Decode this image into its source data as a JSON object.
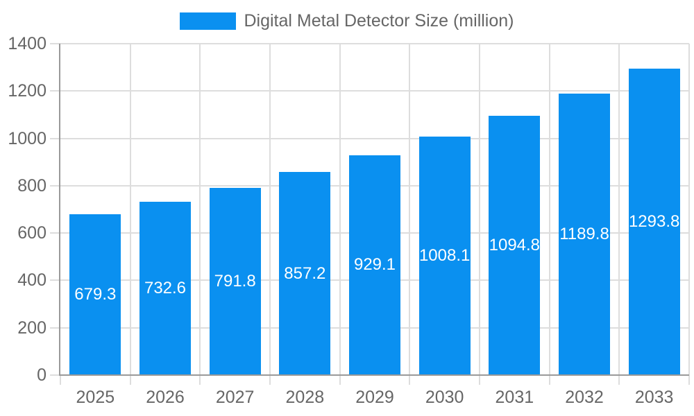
{
  "chart_data": {
    "type": "bar",
    "title": "Digital Metal Detector Size (million)",
    "categories": [
      "2025",
      "2026",
      "2027",
      "2028",
      "2029",
      "2030",
      "2031",
      "2032",
      "2033"
    ],
    "values": [
      679.3,
      732.6,
      791.8,
      857.2,
      929.1,
      1008.1,
      1094.8,
      1189.8,
      1293.8
    ],
    "value_labels": [
      "679.3",
      "732.6",
      "791.8",
      "857.2",
      "929.1",
      "1008.1",
      "1094.8",
      "1189.8",
      "1293.8"
    ],
    "xlabel": "",
    "ylabel": "",
    "ylim": [
      0,
      1400
    ],
    "ytick_step": 200,
    "ytick_labels": [
      "0",
      "200",
      "400",
      "600",
      "800",
      "1000",
      "1200",
      "1400"
    ],
    "grid": true,
    "legend_position": "top-center",
    "colors": {
      "bar": "#0A90F0",
      "value_label": "#FFFFFF",
      "axis_text": "#666666",
      "grid_line": "#DDDDDD",
      "axis_line": "#999999",
      "background": "#FFFFFF"
    }
  }
}
